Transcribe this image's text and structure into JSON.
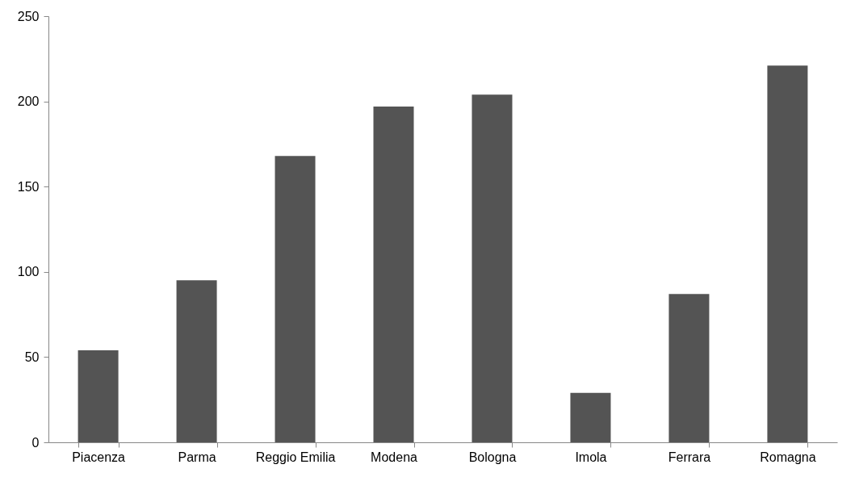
{
  "chart_data": {
    "type": "bar",
    "categories": [
      "Piacenza",
      "Parma",
      "Reggio Emilia",
      "Modena",
      "Bologna",
      "Imola",
      "Ferrara",
      "Romagna"
    ],
    "values": [
      54,
      95,
      168,
      197,
      204,
      29,
      87,
      221
    ],
    "color": "#545454",
    "ylim": [
      0,
      250
    ],
    "yticks": [
      0,
      50,
      100,
      150,
      200,
      250
    ],
    "grid": false
  }
}
